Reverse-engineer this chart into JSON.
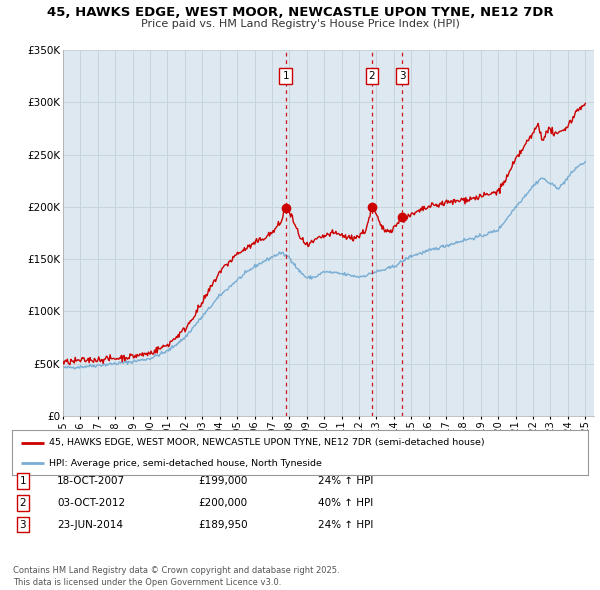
{
  "title": "45, HAWKS EDGE, WEST MOOR, NEWCASTLE UPON TYNE, NE12 7DR",
  "subtitle": "Price paid vs. HM Land Registry's House Price Index (HPI)",
  "legend_line1": "45, HAWKS EDGE, WEST MOOR, NEWCASTLE UPON TYNE, NE12 7DR (semi-detached house)",
  "legend_line2": "HPI: Average price, semi-detached house, North Tyneside",
  "footer": "Contains HM Land Registry data © Crown copyright and database right 2025.\nThis data is licensed under the Open Government Licence v3.0.",
  "sale_color": "#cc0000",
  "hpi_color": "#7aadd4",
  "plot_bg_color": "#dde8f0",
  "grid_color": "#c8d4dc",
  "ylim": [
    0,
    350000
  ],
  "yticks": [
    0,
    50000,
    100000,
    150000,
    200000,
    250000,
    300000,
    350000
  ],
  "ytick_labels": [
    "£0",
    "£50K",
    "£100K",
    "£150K",
    "£200K",
    "£250K",
    "£300K",
    "£350K"
  ],
  "sale_dates": [
    2007.79,
    2012.75,
    2014.47
  ],
  "sale_prices": [
    199000,
    200000,
    189950
  ],
  "sale_labels": [
    "1",
    "2",
    "3"
  ],
  "vline_dates": [
    2007.79,
    2012.75,
    2014.47
  ],
  "table_rows": [
    [
      "1",
      "18-OCT-2007",
      "£199,000",
      "24% ↑ HPI"
    ],
    [
      "2",
      "03-OCT-2012",
      "£200,000",
      "40% ↑ HPI"
    ],
    [
      "3",
      "23-JUN-2014",
      "£189,950",
      "24% ↑ HPI"
    ]
  ]
}
